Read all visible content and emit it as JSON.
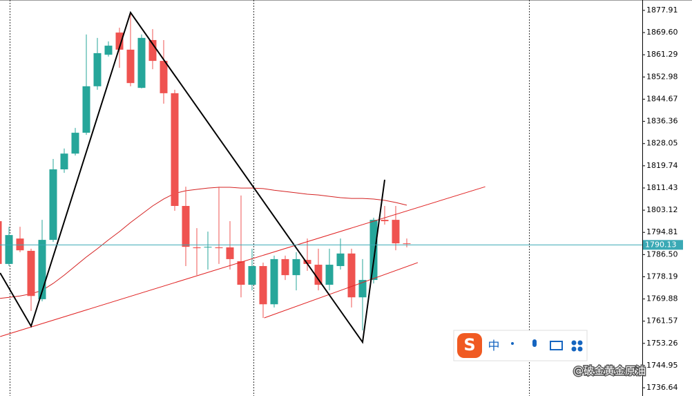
{
  "chart_data": {
    "type": "candlestick",
    "ylim": [
      1733.56,
      1881.79
    ],
    "yticks": [
      {
        "value": 1877.91,
        "label": "1877.91"
      },
      {
        "value": 1869.6,
        "label": "1869.60"
      },
      {
        "value": 1861.29,
        "label": "1861.29"
      },
      {
        "value": 1852.98,
        "label": "1852.98"
      },
      {
        "value": 1844.67,
        "label": "1844.67"
      },
      {
        "value": 1836.36,
        "label": "1836.36"
      },
      {
        "value": 1828.05,
        "label": "1828.05"
      },
      {
        "value": 1819.74,
        "label": "1819.74"
      },
      {
        "value": 1811.43,
        "label": "1811.43"
      },
      {
        "value": 1803.12,
        "label": "1803.12"
      },
      {
        "value": 1794.81,
        "label": "1794.81"
      },
      {
        "value": 1786.5,
        "label": "1786.50"
      },
      {
        "value": 1778.19,
        "label": "1778.19"
      },
      {
        "value": 1769.88,
        "label": "1769.88"
      },
      {
        "value": 1761.57,
        "label": "1761.57"
      },
      {
        "value": 1753.26,
        "label": "1753.26"
      },
      {
        "value": 1744.95,
        "label": "1744.95"
      },
      {
        "value": 1736.64,
        "label": "1736.64"
      }
    ],
    "up_color": "#26a69a",
    "down_color": "#ef5350",
    "open": [
      1799.0,
      1783.0,
      1792.5,
      1787.9,
      1769.8,
      1792.0,
      1818.4,
      1824.3,
      1832.1,
      1849.5,
      1861.3,
      1869.6,
      1863.2,
      1848.9,
      1866.8,
      1859.0,
      1846.9,
      1804.7,
      1789.2,
      1789.2,
      1789.2,
      1789.2,
      1784.0,
      1775.2,
      1782.2,
      1767.9,
      1784.8,
      1778.8,
      1784.5,
      1782.7,
      1775.2,
      1782.2,
      1786.9,
      1770.5,
      1777.0,
      1799.5,
      1799.5,
      1790.7
    ],
    "high": [
      1800.3,
      1796.9,
      1796.9,
      1788.7,
      1799.5,
      1822.3,
      1826.2,
      1833.9,
      1868.9,
      1867.6,
      1866.3,
      1871.4,
      1876.6,
      1868.9,
      1870.9,
      1866.8,
      1848.2,
      1811.9,
      1796.4,
      1795.1,
      1811.9,
      1799.0,
      1808.6,
      1788.7,
      1783.5,
      1786.1,
      1786.1,
      1787.4,
      1792.5,
      1788.7,
      1788.7,
      1792.5,
      1788.7,
      1784.8,
      1800.3,
      1804.7,
      1804.7,
      1792.5
    ],
    "low": [
      1782.2,
      1782.2,
      1787.4,
      1765.4,
      1769.0,
      1791.2,
      1817.1,
      1823.6,
      1831.3,
      1848.2,
      1860.6,
      1856.4,
      1849.5,
      1848.7,
      1855.9,
      1843.0,
      1802.9,
      1782.2,
      1778.8,
      1780.9,
      1783.0,
      1780.9,
      1770.5,
      1773.1,
      1762.8,
      1766.7,
      1777.0,
      1773.1,
      1780.4,
      1773.1,
      1773.1,
      1780.9,
      1766.7,
      1758.1,
      1775.7,
      1797.7,
      1788.1,
      1789.2
    ],
    "close": [
      1783.0,
      1793.8,
      1788.1,
      1771.0,
      1792.0,
      1818.4,
      1824.3,
      1832.1,
      1849.5,
      1861.9,
      1864.7,
      1863.2,
      1850.7,
      1867.6,
      1859.0,
      1846.9,
      1804.7,
      1789.4,
      1788.9,
      1789.4,
      1788.9,
      1784.8,
      1775.2,
      1782.2,
      1767.9,
      1784.8,
      1778.8,
      1784.8,
      1783.0,
      1775.2,
      1782.7,
      1786.9,
      1770.5,
      1777.0,
      1799.5,
      1799.0,
      1790.7,
      1790.5
    ],
    "ma": {
      "color": "#d42020",
      "values": [
        1770.0,
        1770.5,
        1771.0,
        1771.8,
        1773.1,
        1775.7,
        1778.8,
        1782.2,
        1785.6,
        1788.7,
        1792.0,
        1795.1,
        1798.5,
        1801.6,
        1804.7,
        1807.3,
        1809.4,
        1810.4,
        1810.9,
        1811.4,
        1811.7,
        1811.7,
        1811.4,
        1811.4,
        1811.2,
        1810.6,
        1810.1,
        1809.6,
        1809.1,
        1808.8,
        1808.3,
        1807.8,
        1807.5,
        1807.5,
        1807.3,
        1806.8,
        1806.0,
        1805.0
      ]
    },
    "zigzag": {
      "color": "#000000",
      "x": [
        0.2,
        3,
        12,
        33,
        35
      ],
      "values": [
        1779.6,
        1759.7,
        1877.1,
        1753.7,
        1814.5
      ]
    },
    "trendlines": [
      {
        "color": "#e02020",
        "x": [
          0.2,
          44.1
        ],
        "values": [
          1755.8,
          1811.9
        ]
      },
      {
        "color": "#e02020",
        "x": [
          24.1,
          38
        ],
        "values": [
          1762.8,
          1783.5
        ]
      }
    ],
    "current_price": {
      "value": 1790.13,
      "label": "1790.13",
      "color": "#3aa9b5"
    }
  },
  "overlay": {
    "ime_label": "中",
    "watermark": "@破金黄金原油"
  }
}
